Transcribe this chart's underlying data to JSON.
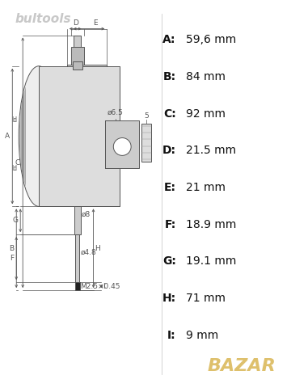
{
  "background_color": "#ffffff",
  "watermark_text": "bultools",
  "watermark_color": "#c8c8c8",
  "watermark_fontsize": 11,
  "bazar_text": "BAZAR",
  "bazar_color": "#c8960a",
  "specs": [
    {
      "label": "A:",
      "value": "59,6 mm"
    },
    {
      "label": "B:",
      "value": "84 mm"
    },
    {
      "label": "C:",
      "value": "92 mm"
    },
    {
      "label": "D:",
      "value": "21.5 mm"
    },
    {
      "label": "E:",
      "value": "21 mm"
    },
    {
      "label": "F:",
      "value": "18.9 mm"
    },
    {
      "label": "G:",
      "value": "19.1 mm"
    },
    {
      "label": "H:",
      "value": "71 mm"
    },
    {
      "label": "I:",
      "value": "9 mm"
    }
  ],
  "line_color": "#555555",
  "fill_light": "#eeeeee",
  "fill_mid": "#dddddd",
  "fill_dark": "#cccccc",
  "fill_knurl": "#aaaaaa",
  "spec_label_fontsize": 10,
  "spec_value_fontsize": 10,
  "draw_label_fontsize": 6.5
}
